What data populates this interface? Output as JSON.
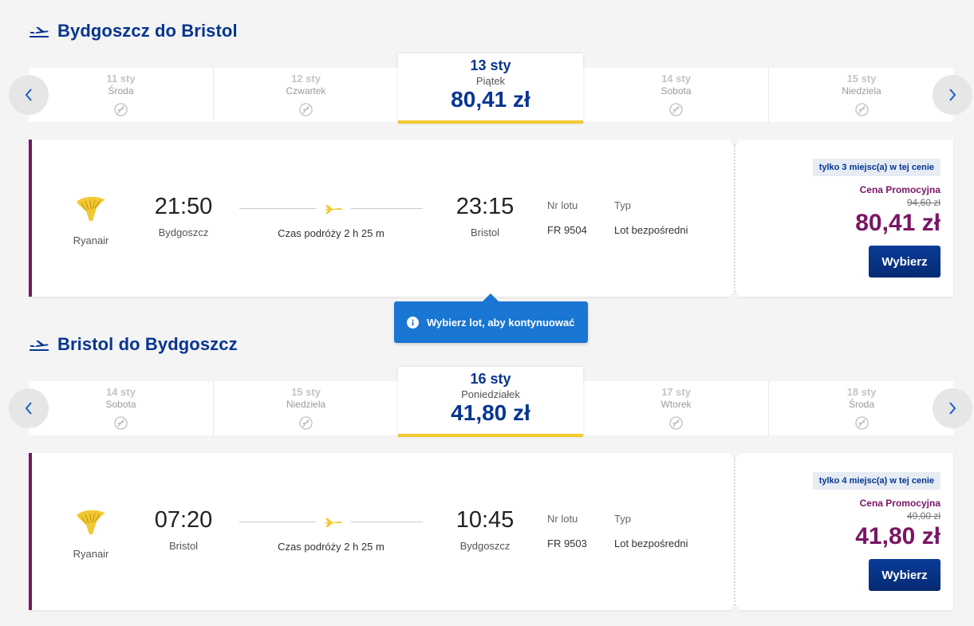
{
  "colors": {
    "brand_blue": "#073590",
    "accent_purple": "#7a1565",
    "highlight_yellow": "#f1c933",
    "tooltip_blue": "#1976d2"
  },
  "outbound": {
    "title": "Bydgoszcz do Bristol",
    "dates": [
      {
        "date": "11 sty",
        "weekday": "Środa"
      },
      {
        "date": "12 sty",
        "weekday": "Czwartek"
      },
      {
        "date": "14 sty",
        "weekday": "Sobota"
      },
      {
        "date": "15 sty",
        "weekday": "Niedziela"
      }
    ],
    "selected": {
      "date": "13 sty",
      "weekday": "Piątek",
      "price": "80,41 zł"
    },
    "flight": {
      "airline": "Ryanair",
      "dep_time": "21:50",
      "dep_city": "Bydgoszcz",
      "arr_time": "23:15",
      "arr_city": "Bristol",
      "duration": "Czas podróży 2 h 25 m",
      "flight_no_label": "Nr lotu",
      "flight_no": "FR 9504",
      "type_label": "Typ",
      "type": "Lot bezpośredni",
      "seats": "tylko 3 miejsc(a) w tej cenie",
      "promo": "Cena Promocyjna",
      "old_price": "94,60 zł",
      "price": "80,41 zł",
      "select_label": "Wybierz"
    }
  },
  "tooltip": {
    "text": "Wybierz lot, aby kontynuować"
  },
  "inbound": {
    "title": "Bristol do Bydgoszcz",
    "dates": [
      {
        "date": "14 sty",
        "weekday": "Sobota"
      },
      {
        "date": "15 sty",
        "weekday": "Niedziela"
      },
      {
        "date": "17 sty",
        "weekday": "Wtorek"
      },
      {
        "date": "18 sty",
        "weekday": "Środa"
      }
    ],
    "selected": {
      "date": "16 sty",
      "weekday": "Poniedziałek",
      "price": "41,80 zł"
    },
    "flight": {
      "airline": "Ryanair",
      "dep_time": "07:20",
      "dep_city": "Bristol",
      "arr_time": "10:45",
      "arr_city": "Bydgoszcz",
      "duration": "Czas podróży 2 h 25 m",
      "flight_no_label": "Nr lotu",
      "flight_no": "FR 9503",
      "type_label": "Typ",
      "type": "Lot bezpośredni",
      "seats": "tylko 4 miejsc(a) w tej cenie",
      "promo": "Cena Promocyjna",
      "old_price": "49,00 zł",
      "price": "41,80 zł",
      "select_label": "Wybierz"
    }
  }
}
